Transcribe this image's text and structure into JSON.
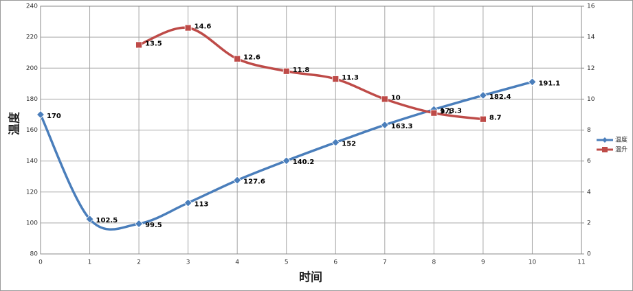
{
  "chart_data": {
    "type": "line",
    "x_label": "时间",
    "y_label": "温度",
    "xlim": [
      0,
      11
    ],
    "xticks": [
      0,
      1,
      2,
      3,
      4,
      5,
      6,
      7,
      8,
      9,
      10,
      11
    ],
    "ylim": [
      80,
      240
    ],
    "yticks": [
      80,
      100,
      120,
      140,
      160,
      180,
      200,
      220,
      240
    ],
    "y2lim": [
      0,
      16
    ],
    "y2ticks": [
      0,
      2,
      4,
      6,
      8,
      10,
      12,
      14,
      16
    ],
    "grid": true,
    "legend": "right",
    "smooth": true,
    "series": [
      {
        "name": "温度",
        "color": "#4a7ebb",
        "marker": "diamond",
        "x": [
          0,
          1,
          2,
          3,
          4,
          5,
          6,
          7,
          8,
          9,
          10
        ],
        "values": [
          170,
          102.5,
          99.5,
          113,
          127.6,
          140.2,
          152,
          163.3,
          173.3,
          182.4,
          191.1
        ]
      },
      {
        "name": "温升",
        "color": "#be4b48",
        "marker": "square",
        "axis": "y2",
        "x": [
          2,
          3,
          4,
          5,
          6,
          7,
          8,
          9
        ],
        "values": [
          13.5,
          14.6,
          12.6,
          11.8,
          11.3,
          10,
          9.1,
          8.7
        ]
      }
    ]
  }
}
